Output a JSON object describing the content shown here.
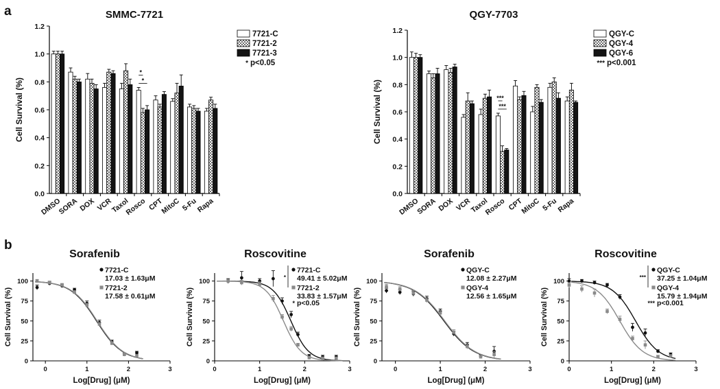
{
  "panel_labels": {
    "a": "a",
    "b": "b"
  },
  "colors": {
    "white_bar": "#ffffff",
    "mid_bar": "#bdbdbd",
    "dark_bar": "#141414",
    "curve_dark": "#111111",
    "curve_grey": "#8a8a8a",
    "axis": "#000000"
  },
  "chart_data": [
    {
      "id": "bar-smmc",
      "type": "bar",
      "title": "SMMC-7721",
      "xlabel": "",
      "ylabel": "Cell Survival (%)",
      "ylim": [
        0,
        1.2
      ],
      "yticks": [
        "0.0",
        "0.2",
        "0.4",
        "0.6",
        "0.8",
        "1.0",
        "1.2"
      ],
      "categories": [
        "DMSO",
        "SORA",
        "DOX",
        "VCR",
        "Taxol",
        "Rosco",
        "CPT",
        "MitoC",
        "5-Fu",
        "Rapa"
      ],
      "series": [
        {
          "name": "7721-C",
          "pattern": "white",
          "values": [
            1.0,
            0.87,
            0.82,
            0.76,
            0.75,
            0.74,
            0.67,
            0.66,
            0.62,
            0.59
          ],
          "errors": [
            0.02,
            0.03,
            0.04,
            0.03,
            0.04,
            0.02,
            0.03,
            0.02,
            0.02,
            0.02
          ]
        },
        {
          "name": "7721-2",
          "pattern": "checker",
          "values": [
            1.0,
            0.82,
            0.79,
            0.87,
            0.88,
            0.58,
            0.62,
            0.72,
            0.61,
            0.67
          ],
          "errors": [
            0.02,
            0.02,
            0.03,
            0.02,
            0.05,
            0.03,
            0.02,
            0.07,
            0.02,
            0.02
          ]
        },
        {
          "name": "7721-3",
          "pattern": "black",
          "values": [
            1.0,
            0.8,
            0.75,
            0.86,
            0.78,
            0.6,
            0.71,
            0.77,
            0.59,
            0.61
          ],
          "errors": [
            0.02,
            0.02,
            0.03,
            0.02,
            0.04,
            0.03,
            0.02,
            0.08,
            0.02,
            0.03
          ]
        }
      ],
      "significance": {
        "symbol": "*",
        "text": "p<0.05"
      },
      "annotations": [
        {
          "category": "Rosco",
          "brackets": 2,
          "stars": "*"
        }
      ],
      "legend_position": "top-right"
    },
    {
      "id": "bar-qgy",
      "type": "bar",
      "title": "QGY-7703",
      "xlabel": "",
      "ylabel": "Cell Survival (%)",
      "ylim": [
        0,
        1.2
      ],
      "yticks": [
        "0.0",
        "0.2",
        "0.4",
        "0.6",
        "0.8",
        "1.0",
        "1.2"
      ],
      "categories": [
        "DMSO",
        "SORA",
        "DOX",
        "VCR",
        "Taxol",
        "Rosco",
        "CPT",
        "MitoC",
        "5-Fu",
        "Rapa"
      ],
      "series": [
        {
          "name": "QGY-C",
          "pattern": "white",
          "values": [
            1.0,
            0.88,
            0.91,
            0.56,
            0.58,
            0.57,
            0.79,
            0.6,
            0.78,
            0.68
          ],
          "errors": [
            0.04,
            0.02,
            0.03,
            0.02,
            0.04,
            0.02,
            0.04,
            0.04,
            0.03,
            0.03
          ]
        },
        {
          "name": "QGY-4",
          "pattern": "checker",
          "values": [
            1.0,
            0.85,
            0.89,
            0.68,
            0.7,
            0.31,
            0.69,
            0.78,
            0.82,
            0.76
          ],
          "errors": [
            0.03,
            0.03,
            0.03,
            0.06,
            0.03,
            0.04,
            0.02,
            0.02,
            0.03,
            0.05
          ]
        },
        {
          "name": "QGY-6",
          "pattern": "black",
          "values": [
            1.0,
            0.88,
            0.93,
            0.66,
            0.71,
            0.32,
            0.72,
            0.67,
            0.7,
            0.67
          ],
          "errors": [
            0.02,
            0.04,
            0.02,
            0.02,
            0.05,
            0.01,
            0.03,
            0.02,
            0.04,
            0.01
          ]
        }
      ],
      "significance": {
        "symbol": "***",
        "text": "p<0.001"
      },
      "annotations": [
        {
          "category": "Rosco",
          "brackets": 2,
          "stars": "***"
        }
      ],
      "legend_position": "top-right"
    },
    {
      "id": "curve-sora-7721",
      "type": "line",
      "title": "Sorafenib",
      "xlabel": "Log[Drug] (μM)",
      "ylabel": "Cell Survival (%)",
      "xlim": [
        -0.3,
        3
      ],
      "ylim": [
        0,
        110
      ],
      "xticks": [
        "0",
        "1",
        "2",
        "3"
      ],
      "yticks": [
        "0",
        "25",
        "50",
        "75",
        "100"
      ],
      "series": [
        {
          "name": "7721-C",
          "label2": "17.03 ± 1.63μM",
          "color": "dark",
          "marker": "circle",
          "ic50_log": 1.231,
          "hill": 1.4,
          "x": [
            -0.2,
            0.1,
            0.4,
            0.7,
            1.0,
            1.3,
            1.6,
            1.9,
            2.2
          ],
          "y": [
            92,
            97,
            94,
            89,
            72,
            48,
            24,
            8,
            10
          ],
          "err": [
            3,
            2,
            2,
            2,
            3,
            3,
            2,
            2,
            2
          ]
        },
        {
          "name": "7721-2",
          "label2": "17.58 ± 0.61μM",
          "color": "grey",
          "marker": "square",
          "ic50_log": 1.245,
          "hill": 1.4,
          "x": [
            -0.2,
            0.1,
            0.4,
            0.7,
            1.0,
            1.3,
            1.6,
            1.9,
            2.2
          ],
          "y": [
            100,
            98,
            95,
            86,
            70,
            46,
            22,
            8,
            6
          ],
          "err": [
            2,
            2,
            2,
            2,
            2,
            2,
            2,
            2,
            2
          ]
        }
      ],
      "significance": null
    },
    {
      "id": "curve-rosco-7721",
      "type": "line",
      "title": "Roscovitine",
      "xlabel": "Log[Drug] (μM)",
      "ylabel": "Cell Survival (%)",
      "xlim": [
        0,
        3
      ],
      "ylim": [
        0,
        110
      ],
      "xticks": [
        "0",
        "1",
        "2",
        "3"
      ],
      "yticks": [
        "0",
        "25",
        "50",
        "75",
        "100"
      ],
      "series": [
        {
          "name": "7721-C",
          "label2": "49.41 ± 5.02μM",
          "color": "dark",
          "marker": "circle",
          "ic50_log": 1.694,
          "hill": 2.2,
          "x": [
            0.3,
            0.6,
            1.0,
            1.3,
            1.5,
            1.7,
            1.85,
            2.1,
            2.4,
            2.7
          ],
          "y": [
            100,
            104,
            100,
            103,
            75,
            58,
            33,
            6,
            5,
            5
          ],
          "err": [
            3,
            8,
            3,
            10,
            4,
            4,
            3,
            2,
            2,
            2
          ]
        },
        {
          "name": "7721-2",
          "label2": "33.83 ± 1.57μM",
          "color": "grey",
          "marker": "square",
          "ic50_log": 1.529,
          "hill": 2.2,
          "x": [
            0.3,
            0.6,
            1.0,
            1.3,
            1.5,
            1.7,
            1.85,
            2.1,
            2.4,
            2.7
          ],
          "y": [
            100,
            98,
            96,
            78,
            55,
            40,
            20,
            4,
            3,
            3
          ],
          "err": [
            2,
            3,
            3,
            4,
            3,
            3,
            2,
            2,
            2,
            2
          ]
        }
      ],
      "significance": {
        "symbol": "*",
        "text": "p<0.05"
      }
    },
    {
      "id": "curve-sora-qgy",
      "type": "line",
      "title": "Sorafenib",
      "xlabel": "Log[Drug] (μM)",
      "ylabel": "Cell Survival (%)",
      "xlim": [
        -0.3,
        3
      ],
      "ylim": [
        0,
        110
      ],
      "xticks": [
        "0",
        "1",
        "2",
        "3"
      ],
      "yticks": [
        "0",
        "25",
        "50",
        "75",
        "100"
      ],
      "series": [
        {
          "name": "QGY-C",
          "label2": "12.08 ± 2.27μM",
          "color": "dark",
          "marker": "circle",
          "ic50_log": 1.082,
          "hill": 1.3,
          "x": [
            -0.2,
            0.1,
            0.4,
            0.7,
            1.0,
            1.3,
            1.6,
            1.9,
            2.2
          ],
          "y": [
            88,
            86,
            84,
            78,
            62,
            34,
            20,
            6,
            12
          ],
          "err": [
            3,
            3,
            3,
            3,
            3,
            3,
            3,
            2,
            6
          ]
        },
        {
          "name": "QGY-4",
          "label2": "12.56 ± 1.65μM",
          "color": "grey",
          "marker": "square",
          "ic50_log": 1.099,
          "hill": 1.3,
          "x": [
            -0.2,
            0.1,
            0.4,
            0.7,
            1.0,
            1.3,
            1.6,
            1.9,
            2.2
          ],
          "y": [
            93,
            90,
            85,
            76,
            60,
            36,
            18,
            5,
            8
          ],
          "err": [
            3,
            3,
            3,
            3,
            3,
            3,
            3,
            2,
            4
          ]
        }
      ],
      "significance": null
    },
    {
      "id": "curve-rosco-qgy",
      "type": "line",
      "title": "Roscovitine",
      "xlabel": "Log[Drug] (μM)",
      "ylabel": "Cell Survival (%)",
      "xlim": [
        0,
        3
      ],
      "ylim": [
        0,
        110
      ],
      "xticks": [
        "0",
        "1",
        "2",
        "3"
      ],
      "yticks": [
        "0",
        "25",
        "50",
        "75",
        "100"
      ],
      "series": [
        {
          "name": "QGY-C",
          "label2": "37.25 ± 1.04μM",
          "color": "dark",
          "marker": "circle",
          "ic50_log": 1.571,
          "hill": 1.6,
          "x": [
            0,
            0.3,
            0.6,
            0.9,
            1.2,
            1.5,
            1.8,
            2.1,
            2.4
          ],
          "y": [
            100,
            100,
            98,
            95,
            80,
            42,
            35,
            12,
            8
          ],
          "err": [
            3,
            2,
            2,
            2,
            3,
            5,
            5,
            2,
            2
          ]
        },
        {
          "name": "QGY-4",
          "label2": "15.79 ± 1.94μM",
          "color": "grey",
          "marker": "square",
          "ic50_log": 1.198,
          "hill": 1.6,
          "x": [
            0,
            0.3,
            0.6,
            0.9,
            1.2,
            1.5,
            1.8,
            2.1,
            2.4
          ],
          "y": [
            95,
            90,
            85,
            62,
            52,
            28,
            20,
            5,
            6
          ],
          "err": [
            3,
            4,
            5,
            3,
            4,
            3,
            5,
            2,
            2
          ]
        }
      ],
      "significance": {
        "symbol": "***",
        "text": "p<0.001"
      }
    }
  ]
}
